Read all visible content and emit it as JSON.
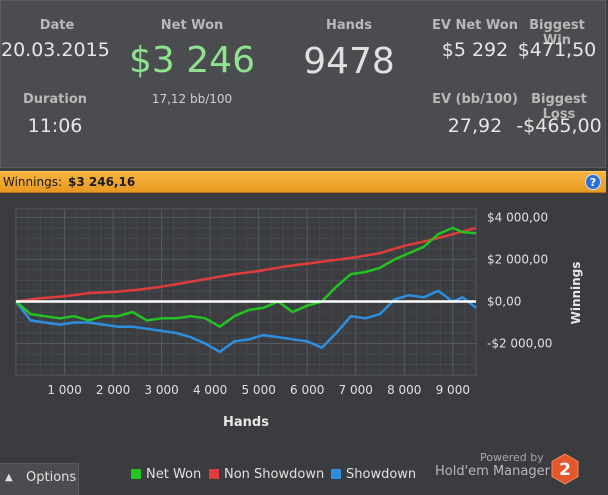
{
  "stats": {
    "date_label": "Date",
    "date_value": "20.03.2015",
    "duration_label": "Duration",
    "duration_value": "11:06",
    "net_won_label": "Net Won",
    "net_won_value": "$3 246",
    "net_won_sub": "17,12 bb/100",
    "hands_label": "Hands",
    "hands_value": "9478",
    "ev_net_won_label": "EV Net Won",
    "ev_net_won_value": "$5 292",
    "ev_bb_label": "EV (bb/100)",
    "ev_bb_value": "27,92",
    "biggest_win_label": "Biggest Win",
    "biggest_win_value": "$471,50",
    "biggest_loss_label": "Biggest Loss",
    "biggest_loss_value": "-$465,00"
  },
  "winnings_bar": {
    "label": "Winnings:",
    "amount": "$3 246,16",
    "help": "?"
  },
  "chart_data": {
    "type": "line",
    "xlabel": "Hands",
    "ylabel": "Winnings",
    "xlim": [
      0,
      9478
    ],
    "ylim": [
      -3500,
      4400
    ],
    "x_ticks": [
      1000,
      2000,
      3000,
      4000,
      5000,
      6000,
      7000,
      8000,
      9000
    ],
    "x_tick_labels": [
      "1 000",
      "2 000",
      "3 000",
      "4 000",
      "5 000",
      "6 000",
      "7 000",
      "8 000",
      "9 000"
    ],
    "y_ticks": [
      4000,
      2000,
      0,
      -2000
    ],
    "y_tick_labels": [
      "$4 000,00",
      "$2 000,00",
      "$0,00",
      "-$2 000,00"
    ],
    "grid": true,
    "series": [
      {
        "name": "Net Won",
        "color": "#22c322",
        "x": [
          0,
          300,
          600,
          900,
          1200,
          1500,
          1800,
          2100,
          2400,
          2700,
          3000,
          3300,
          3600,
          3900,
          4200,
          4500,
          4800,
          5100,
          5400,
          5700,
          6000,
          6300,
          6600,
          6900,
          7200,
          7500,
          7800,
          8100,
          8400,
          8700,
          9000,
          9200,
          9478
        ],
        "y": [
          0,
          -600,
          -700,
          -800,
          -700,
          -900,
          -700,
          -700,
          -500,
          -900,
          -800,
          -800,
          -700,
          -800,
          -1200,
          -700,
          -400,
          -300,
          0,
          -500,
          -200,
          0,
          700,
          1300,
          1400,
          1600,
          2000,
          2300,
          2600,
          3200,
          3500,
          3300,
          3246
        ]
      },
      {
        "name": "Non Showdown",
        "color": "#e03c3c",
        "x": [
          0,
          500,
          1000,
          1500,
          2000,
          2500,
          3000,
          3500,
          4000,
          4500,
          5000,
          5500,
          6000,
          6500,
          7000,
          7500,
          8000,
          8500,
          9000,
          9478
        ],
        "y": [
          0,
          150,
          250,
          400,
          450,
          550,
          700,
          900,
          1100,
          1300,
          1450,
          1650,
          1800,
          1950,
          2100,
          2300,
          2650,
          2900,
          3200,
          3500
        ]
      },
      {
        "name": "Showdown",
        "color": "#2e8fe0",
        "x": [
          0,
          300,
          600,
          900,
          1200,
          1500,
          1800,
          2100,
          2400,
          2700,
          3000,
          3300,
          3600,
          3900,
          4200,
          4500,
          4800,
          5100,
          5400,
          5700,
          6000,
          6300,
          6600,
          6900,
          7200,
          7500,
          7800,
          8100,
          8400,
          8700,
          9000,
          9200,
          9478
        ],
        "y": [
          0,
          -900,
          -1000,
          -1100,
          -1000,
          -1000,
          -1100,
          -1200,
          -1200,
          -1300,
          -1400,
          -1500,
          -1700,
          -2000,
          -2400,
          -1900,
          -1800,
          -1600,
          -1700,
          -1800,
          -1900,
          -2200,
          -1500,
          -700,
          -800,
          -600,
          100,
          300,
          200,
          500,
          0,
          200,
          -300
        ]
      }
    ]
  },
  "legend": {
    "net_won": "Net Won",
    "non_showdown": "Non Showdown",
    "showdown": "Showdown"
  },
  "footer": {
    "options_label": "Options",
    "options_icon": "chevron-up-icon",
    "powered_by": "Powered by",
    "brand": "Hold'em Manager",
    "logo_text": "2"
  }
}
